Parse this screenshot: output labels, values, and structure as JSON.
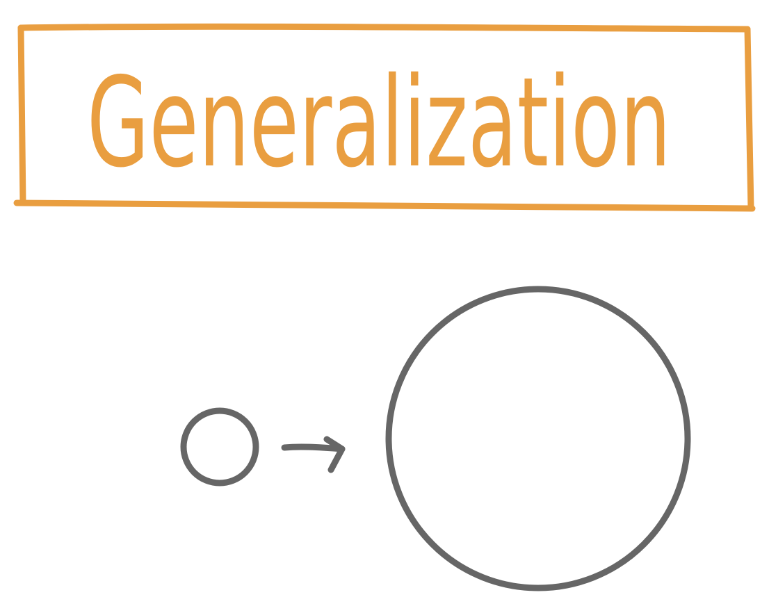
{
  "title": {
    "text": "Generalization",
    "color": "#E99E40"
  },
  "diagram": {
    "stroke_color": "#666666",
    "from_shape": "small-circle",
    "connector": "arrow-right-icon",
    "to_shape": "large-circle"
  }
}
